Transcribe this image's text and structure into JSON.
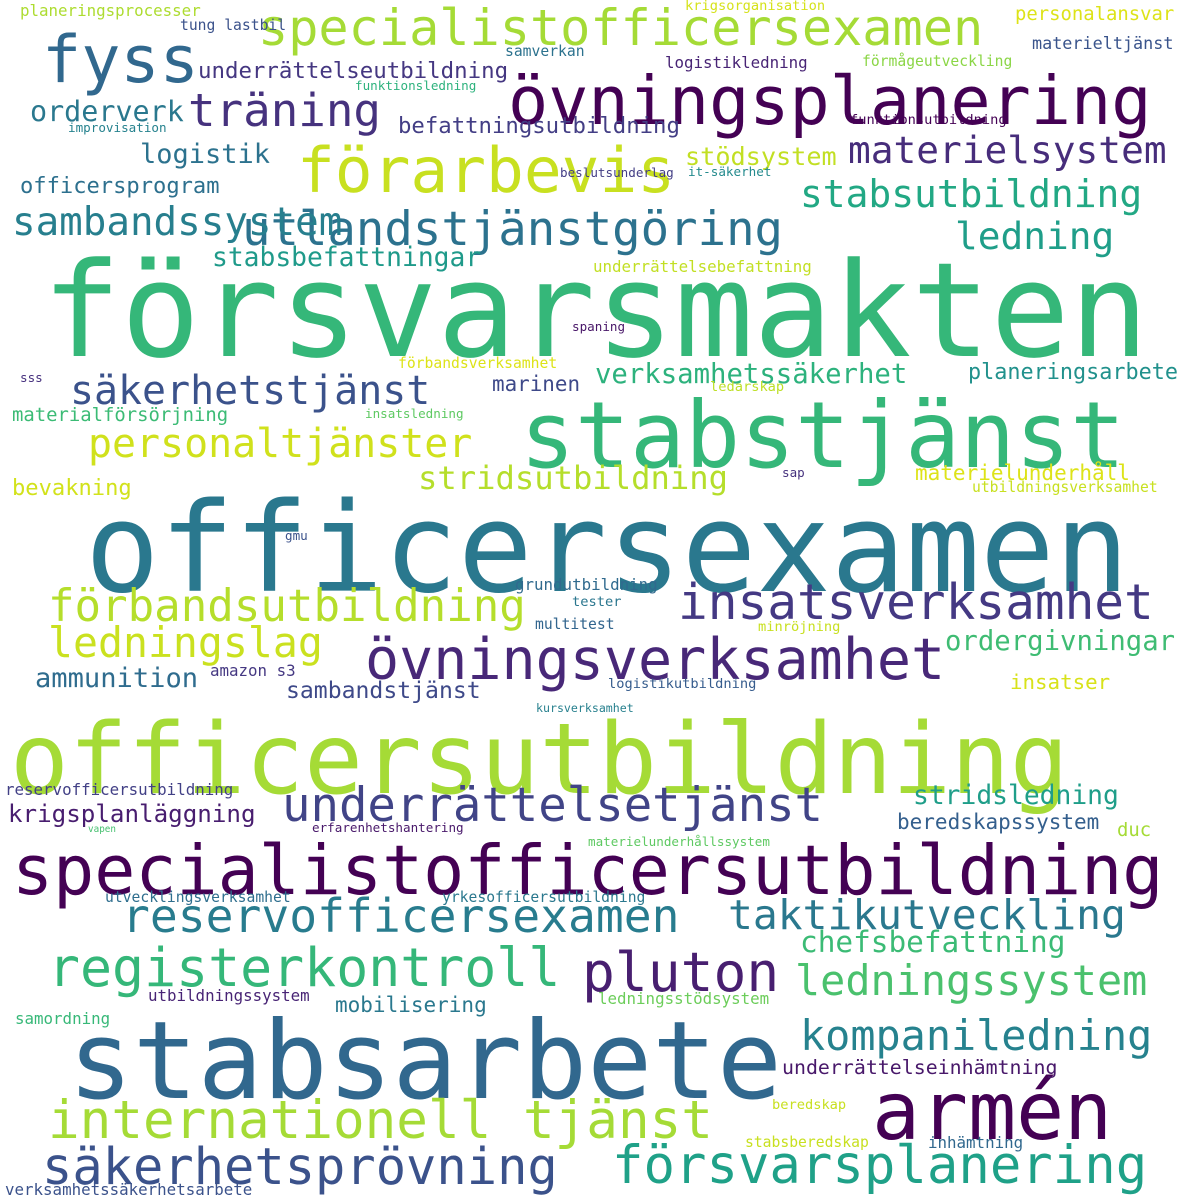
{
  "words": [
    {
      "text": "försvarsmakten",
      "color": "#35b779"
    },
    {
      "text": "officersexamen",
      "color": "#2a788e"
    },
    {
      "text": "officersutbildning",
      "color": "#a5db36"
    },
    {
      "text": "stabsarbete",
      "color": "#31688e"
    },
    {
      "text": "stabstjänst",
      "color": "#35b779"
    },
    {
      "text": "specialistofficersutbildning",
      "color": "#440154"
    },
    {
      "text": "armén",
      "color": "#440154"
    },
    {
      "text": "övningsplanering",
      "color": "#440154"
    },
    {
      "text": "specialistofficersexamen",
      "color": "#a5db36"
    },
    {
      "text": "fyss",
      "color": "#31688e"
    },
    {
      "text": "förarbevis",
      "color": "#c8e020"
    },
    {
      "text": "insatsverksamhet",
      "color": "#443983"
    },
    {
      "text": "övningsverksamhet",
      "color": "#482878"
    },
    {
      "text": "registerkontroll",
      "color": "#35b779"
    },
    {
      "text": "pluton",
      "color": "#481f70"
    },
    {
      "text": "internationell tjänst",
      "color": "#a5db36"
    },
    {
      "text": "försvarsplanering",
      "color": "#1fa188"
    },
    {
      "text": "säkerhetsprövning",
      "color": "#3b528b"
    },
    {
      "text": "underrättelsetjänst",
      "color": "#414487"
    },
    {
      "text": "reservofficersexamen",
      "color": "#287c8e"
    },
    {
      "text": "förbandsutbildning",
      "color": "#b5de2b"
    },
    {
      "text": "utlandstjänstgöring",
      "color": "#2c728e"
    },
    {
      "text": "träning",
      "color": "#46327e"
    },
    {
      "text": "sambandssystem",
      "color": "#277f8e"
    },
    {
      "text": "säkerhetstjänst",
      "color": "#3b528b"
    },
    {
      "text": "personaltjänster",
      "color": "#d0e11c"
    },
    {
      "text": "taktikutveckling",
      "color": "#2a788e"
    },
    {
      "text": "ledningssystem",
      "color": "#4ac16d"
    },
    {
      "text": "kompaniledning",
      "color": "#26828e"
    },
    {
      "text": "materielsystem",
      "color": "#472d7b"
    },
    {
      "text": "stabsutbildning",
      "color": "#22a884"
    },
    {
      "text": "ledning",
      "color": "#1f9e89"
    },
    {
      "text": "ledningslag",
      "color": "#cae11f"
    },
    {
      "text": "stridsutbildning",
      "color": "#b5de2b"
    },
    {
      "text": "chefsbefattning",
      "color": "#3bbb75"
    },
    {
      "text": "underrättelseutbildning",
      "color": "#453781"
    },
    {
      "text": "orderverk",
      "color": "#2a788e"
    },
    {
      "text": "logistik",
      "color": "#2c728e"
    },
    {
      "text": "stödsystem",
      "color": "#c2df23"
    },
    {
      "text": "befattningsutbildning",
      "color": "#433e85"
    },
    {
      "text": "officersprogram",
      "color": "#2d708e"
    },
    {
      "text": "stabsbefattningar",
      "color": "#1f9a8a"
    },
    {
      "text": "verksamhetssäkerhet",
      "color": "#2db27d"
    },
    {
      "text": "marinen",
      "color": "#3e4989"
    },
    {
      "text": "planeringsarbete",
      "color": "#21918c"
    },
    {
      "text": "ordergivningar",
      "color": "#3fbc73"
    },
    {
      "text": "insatser",
      "color": "#d8e219"
    },
    {
      "text": "ammunition",
      "color": "#2f6c8e"
    },
    {
      "text": "sambandstjänst",
      "color": "#3e4989"
    },
    {
      "text": "krigsplanläggning",
      "color": "#481d6f"
    },
    {
      "text": "stridsledning",
      "color": "#1f9e89"
    },
    {
      "text": "beredskapssystem",
      "color": "#345f8d"
    },
    {
      "text": "mobilisering",
      "color": "#2a788e"
    },
    {
      "text": "underrättelseinhämtning",
      "color": "#48186a"
    },
    {
      "text": "materielunderhåll",
      "color": "#dde318"
    },
    {
      "text": "personalansvar",
      "color": "#dde318"
    },
    {
      "text": "materieltjänst",
      "color": "#3a548c"
    },
    {
      "text": "logistikledning",
      "color": "#482475"
    },
    {
      "text": "förmågeutveckling",
      "color": "#8bd646"
    },
    {
      "text": "planeringsprocesser",
      "color": "#addc30"
    },
    {
      "text": "tung lastbil",
      "color": "#3b528b"
    },
    {
      "text": "krigsorganisation",
      "color": "#d5e21a"
    },
    {
      "text": "samverkan",
      "color": "#2c728e"
    },
    {
      "text": "funktionsledning",
      "color": "#2db27d"
    },
    {
      "text": "improvisation",
      "color": "#26828e"
    },
    {
      "text": "funktionsutbildning",
      "color": "#440154"
    },
    {
      "text": "beslutsunderlag",
      "color": "#433e85"
    },
    {
      "text": "it-säkerhet",
      "color": "#238a8d"
    },
    {
      "text": "underrättelsebefattning",
      "color": "#c2df23"
    },
    {
      "text": "spaning",
      "color": "#481668"
    },
    {
      "text": "förbandsverksamhet",
      "color": "#dde318"
    },
    {
      "text": "sss",
      "color": "#46307e"
    },
    {
      "text": "ledarskap",
      "color": "#bddf26"
    },
    {
      "text": "materialförsörjning",
      "color": "#3bbb75"
    },
    {
      "text": "insatsledning",
      "color": "#5ec962"
    },
    {
      "text": "bevakning",
      "color": "#d2e21b"
    },
    {
      "text": "sap",
      "color": "#46327e"
    },
    {
      "text": "utbildningsverksamhet",
      "color": "#c8e020"
    },
    {
      "text": "gmu",
      "color": "#3b528b"
    },
    {
      "text": "grundutbildning",
      "color": "#306a8e"
    },
    {
      "text": "tester",
      "color": "#2a768e"
    },
    {
      "text": "multitest",
      "color": "#32658e"
    },
    {
      "text": "minröjning",
      "color": "#c8e020"
    },
    {
      "text": "amazon s3",
      "color": "#453882"
    },
    {
      "text": "logistikutbildning",
      "color": "#365c8d"
    },
    {
      "text": "kursverksamhet",
      "color": "#27808e"
    },
    {
      "text": "reservofficersutbildning",
      "color": "#424086"
    },
    {
      "text": "vapen",
      "color": "#46c06f"
    },
    {
      "text": "erfarenhetshantering",
      "color": "#48186a"
    },
    {
      "text": "materielunderhållssystem",
      "color": "#5ec962"
    },
    {
      "text": "duc",
      "color": "#a5db36"
    },
    {
      "text": "utvecklingsverksamhet",
      "color": "#2e6e8e"
    },
    {
      "text": "yrkesofficersutbildning",
      "color": "#2a788e"
    },
    {
      "text": "utbildningssystem",
      "color": "#482475"
    },
    {
      "text": "ledningsstödsystem",
      "color": "#6ccd5a"
    },
    {
      "text": "samordning",
      "color": "#37b878"
    },
    {
      "text": "beredskap",
      "color": "#c8e020"
    },
    {
      "text": "stabsberedskap",
      "color": "#c8e020"
    },
    {
      "text": "inhämtning",
      "color": "#31688e"
    },
    {
      "text": "verksamhetssäkerhetsarbete",
      "color": "#3b528b"
    }
  ]
}
